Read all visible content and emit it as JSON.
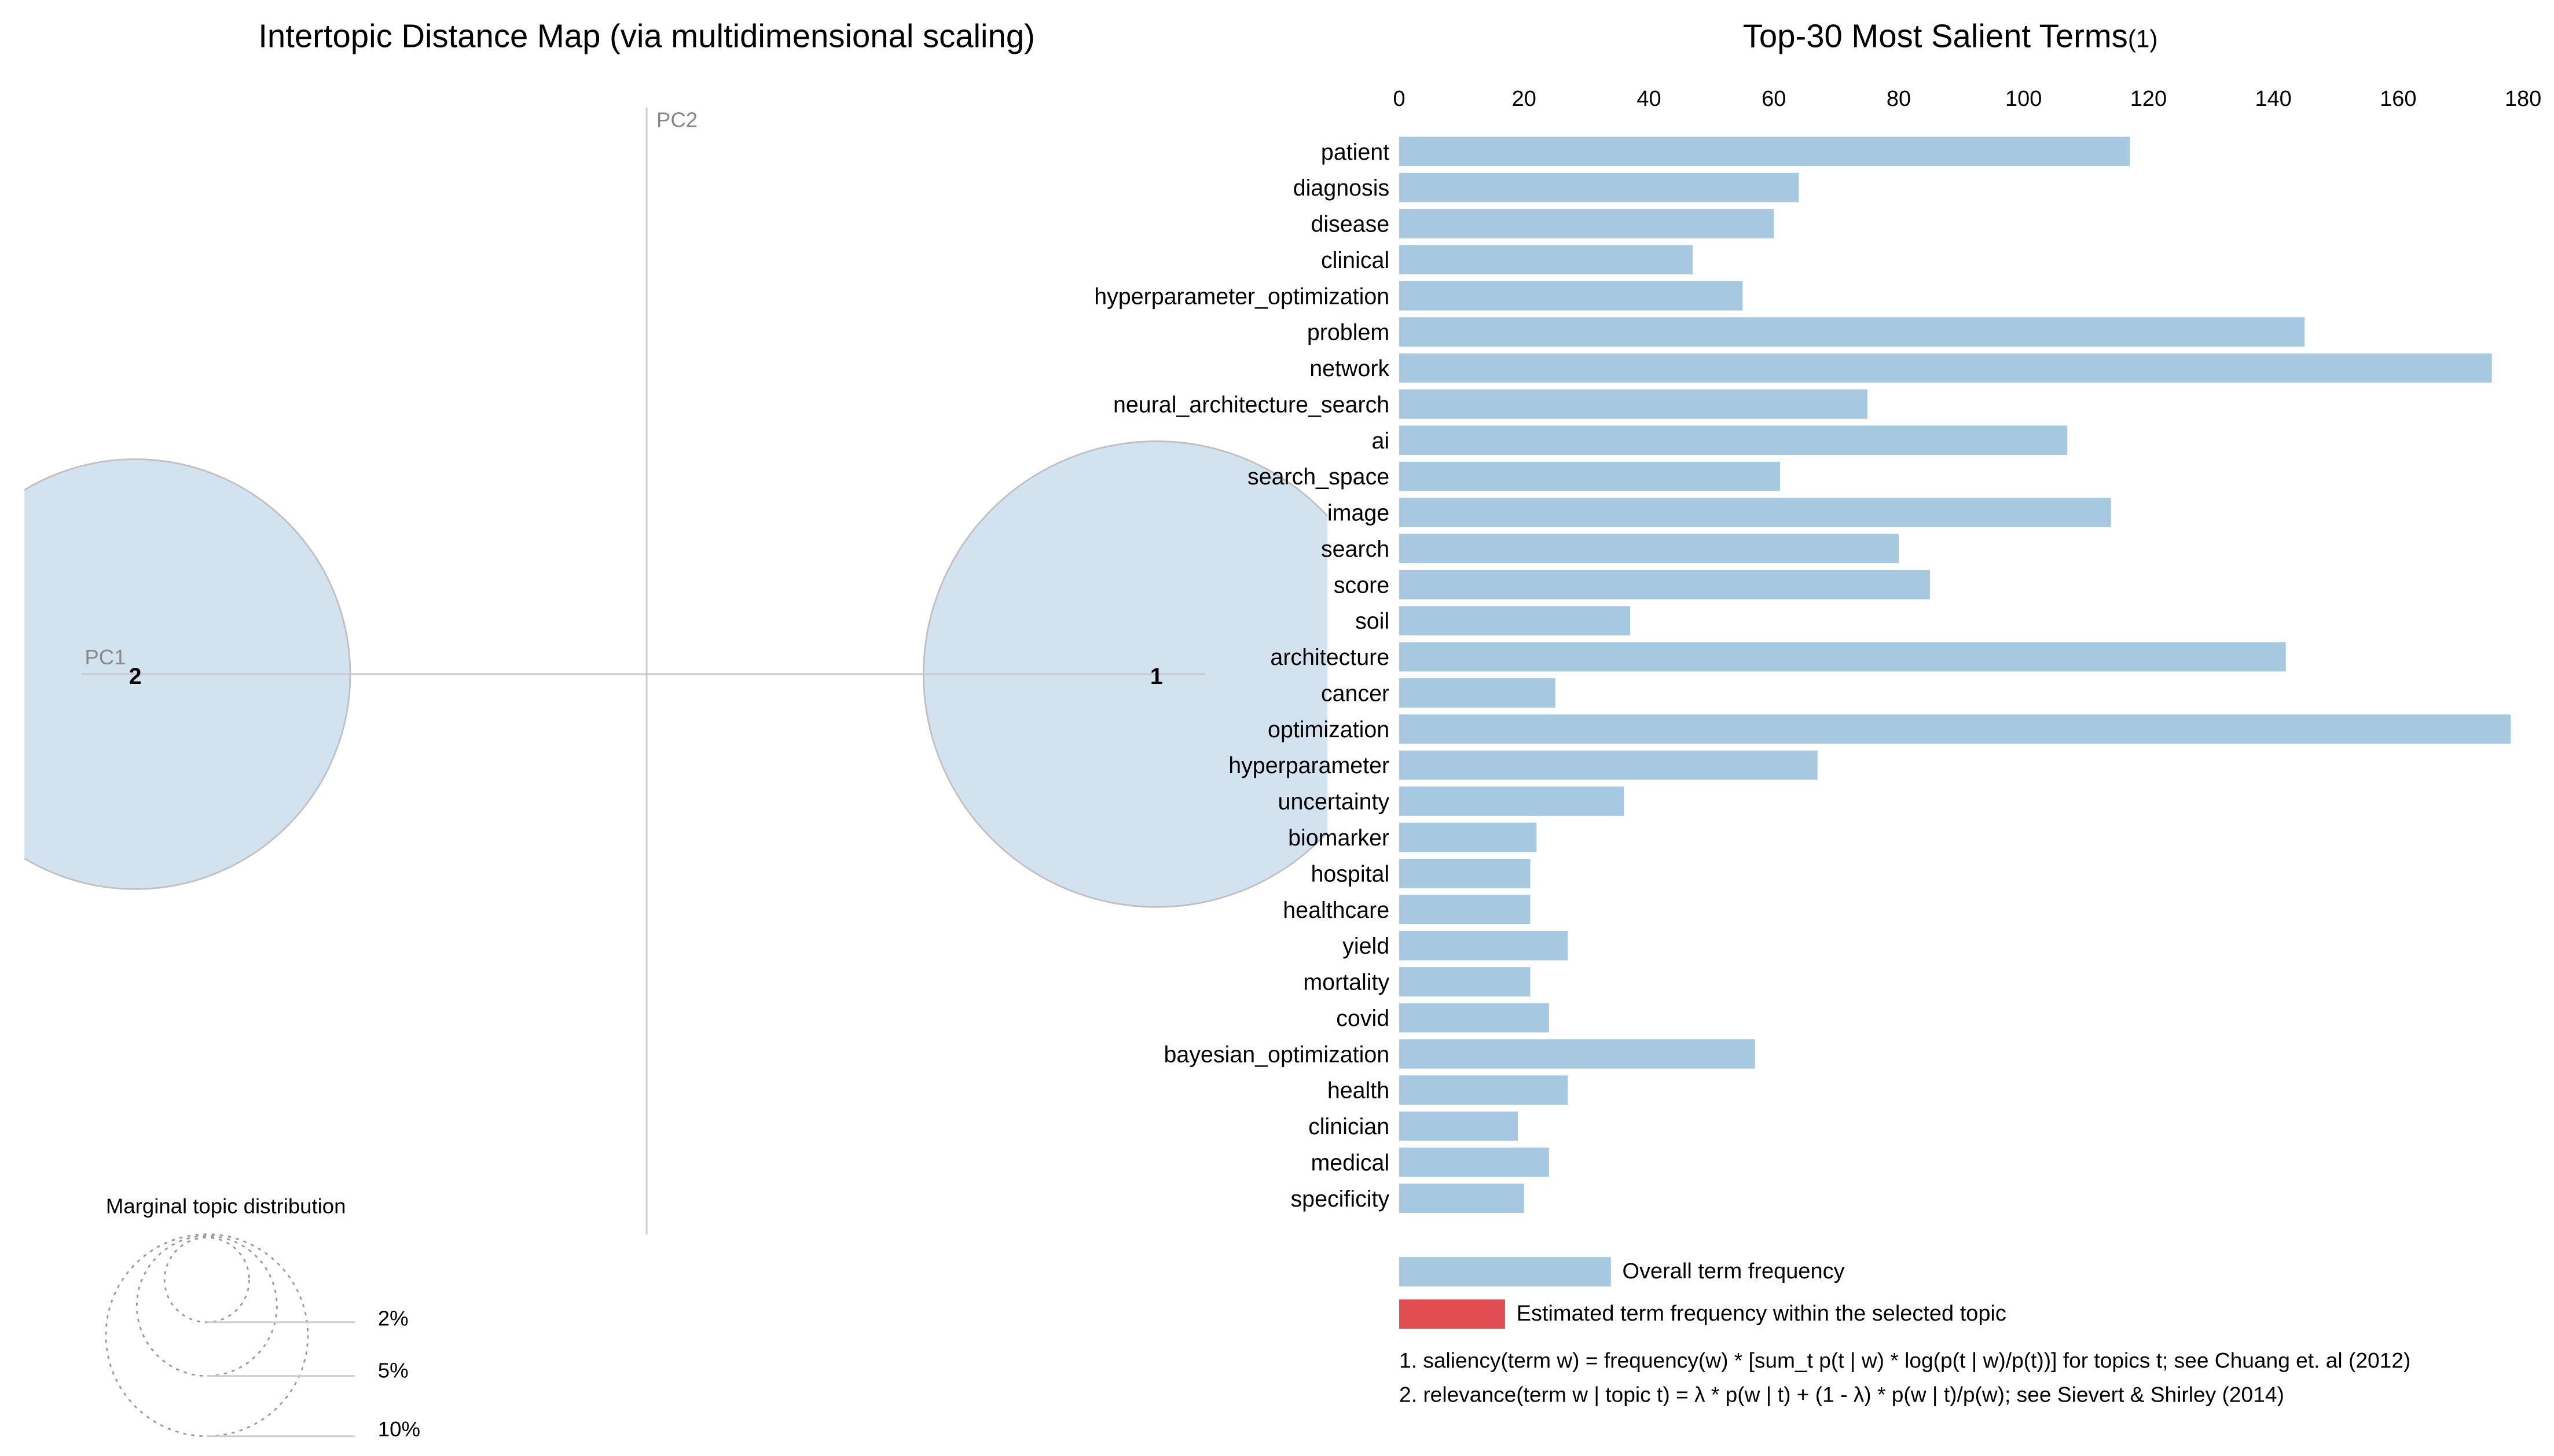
{
  "colors": {
    "bar": "#a6c8e0",
    "topic_bar": "#e04e52",
    "circle_fill": "#d2e2ee",
    "circle_stroke": "#c0c0c0"
  },
  "left_panel": {
    "title": "Intertopic Distance Map (via multidimensional scaling)",
    "axis_x_label": "PC1",
    "axis_y_label": "PC2",
    "topics": [
      {
        "label": "1",
        "marginal_pct": 54
      },
      {
        "label": "2",
        "marginal_pct": 46
      }
    ],
    "marginal_legend": {
      "title": "Marginal topic distribution",
      "levels": [
        "2%",
        "5%",
        "10%"
      ]
    }
  },
  "chart_data": {
    "type": "bar",
    "orientation": "horizontal",
    "title": "Top-30 Most Salient Terms",
    "title_superscript": "(1)",
    "xlim": [
      0,
      180
    ],
    "xticks": [
      "0",
      "20",
      "40",
      "60",
      "80",
      "100",
      "120",
      "140",
      "160",
      "180"
    ],
    "categories": [
      "patient",
      "diagnosis",
      "disease",
      "clinical",
      "hyperparameter_optimization",
      "problem",
      "network",
      "neural_architecture_search",
      "ai",
      "search_space",
      "image",
      "search",
      "score",
      "soil",
      "architecture",
      "cancer",
      "optimization",
      "hyperparameter",
      "uncertainty",
      "biomarker",
      "hospital",
      "healthcare",
      "yield",
      "mortality",
      "covid",
      "bayesian_optimization",
      "health",
      "clinician",
      "medical",
      "specificity"
    ],
    "series": [
      {
        "name": "Overall term frequency",
        "values": [
          117,
          64,
          60,
          47,
          55,
          145,
          175,
          75,
          107,
          61,
          114,
          80,
          85,
          37,
          142,
          25,
          178,
          67,
          36,
          22,
          21,
          21,
          27,
          21,
          24,
          57,
          27,
          19,
          24,
          20
        ]
      }
    ],
    "legend": {
      "overall": "Overall term frequency",
      "estimated": "Estimated term frequency within the selected topic"
    },
    "footnotes": [
      "1. saliency(term w) = frequency(w) * [sum_t p(t | w) * log(p(t | w)/p(t))] for topics t; see Chuang et. al (2012)",
      "2. relevance(term w | topic t) = λ * p(w | t) + (1 - λ) * p(w | t)/p(w); see Sievert & Shirley (2014)"
    ]
  }
}
